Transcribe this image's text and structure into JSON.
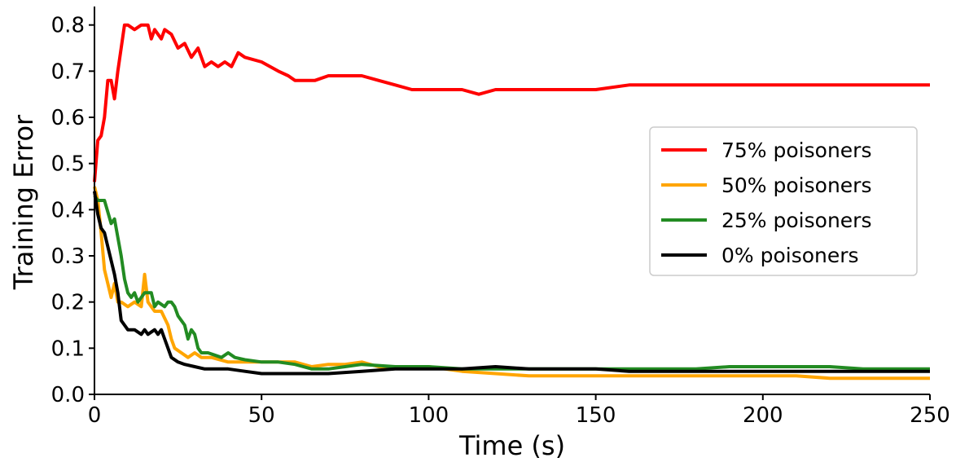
{
  "chart_data": {
    "type": "line",
    "title": "",
    "xlabel": "Time (s)",
    "ylabel": "Training Error",
    "xlim": [
      0,
      250
    ],
    "ylim": [
      0,
      0.84
    ],
    "xticks": [
      "0",
      "50",
      "100",
      "150",
      "200",
      "250"
    ],
    "yticks": [
      "0.0",
      "0.1",
      "0.2",
      "0.3",
      "0.4",
      "0.5",
      "0.6",
      "0.7",
      "0.8"
    ],
    "grid": false,
    "legend_position": "center-right",
    "series": [
      {
        "name": "75% poisoners",
        "color": "#ff0000",
        "points": [
          [
            0,
            0.46
          ],
          [
            1,
            0.55
          ],
          [
            2,
            0.56
          ],
          [
            3,
            0.6
          ],
          [
            4,
            0.68
          ],
          [
            5,
            0.68
          ],
          [
            6,
            0.64
          ],
          [
            7,
            0.7
          ],
          [
            8,
            0.75
          ],
          [
            9,
            0.8
          ],
          [
            10,
            0.8
          ],
          [
            12,
            0.79
          ],
          [
            14,
            0.8
          ],
          [
            16,
            0.8
          ],
          [
            17,
            0.77
          ],
          [
            18,
            0.79
          ],
          [
            20,
            0.77
          ],
          [
            21,
            0.79
          ],
          [
            23,
            0.78
          ],
          [
            25,
            0.75
          ],
          [
            27,
            0.76
          ],
          [
            29,
            0.73
          ],
          [
            31,
            0.75
          ],
          [
            33,
            0.71
          ],
          [
            35,
            0.72
          ],
          [
            37,
            0.71
          ],
          [
            39,
            0.72
          ],
          [
            41,
            0.71
          ],
          [
            43,
            0.74
          ],
          [
            45,
            0.73
          ],
          [
            50,
            0.72
          ],
          [
            55,
            0.7
          ],
          [
            58,
            0.69
          ],
          [
            60,
            0.68
          ],
          [
            63,
            0.68
          ],
          [
            66,
            0.68
          ],
          [
            70,
            0.69
          ],
          [
            75,
            0.69
          ],
          [
            80,
            0.69
          ],
          [
            85,
            0.68
          ],
          [
            90,
            0.67
          ],
          [
            95,
            0.66
          ],
          [
            100,
            0.66
          ],
          [
            105,
            0.66
          ],
          [
            110,
            0.66
          ],
          [
            115,
            0.65
          ],
          [
            120,
            0.66
          ],
          [
            130,
            0.66
          ],
          [
            140,
            0.66
          ],
          [
            150,
            0.66
          ],
          [
            160,
            0.67
          ],
          [
            170,
            0.67
          ],
          [
            180,
            0.67
          ],
          [
            190,
            0.67
          ],
          [
            200,
            0.67
          ],
          [
            210,
            0.67
          ],
          [
            220,
            0.67
          ],
          [
            230,
            0.67
          ],
          [
            240,
            0.67
          ],
          [
            250,
            0.67
          ]
        ]
      },
      {
        "name": "50% poisoners",
        "color": "#ffa500",
        "points": [
          [
            0,
            0.45
          ],
          [
            1,
            0.42
          ],
          [
            2,
            0.35
          ],
          [
            3,
            0.27
          ],
          [
            4,
            0.24
          ],
          [
            5,
            0.21
          ],
          [
            6,
            0.24
          ],
          [
            7,
            0.2
          ],
          [
            8,
            0.2
          ],
          [
            10,
            0.19
          ],
          [
            12,
            0.2
          ],
          [
            14,
            0.19
          ],
          [
            15,
            0.26
          ],
          [
            16,
            0.2
          ],
          [
            18,
            0.18
          ],
          [
            20,
            0.18
          ],
          [
            22,
            0.15
          ],
          [
            23,
            0.12
          ],
          [
            24,
            0.1
          ],
          [
            26,
            0.09
          ],
          [
            28,
            0.08
          ],
          [
            30,
            0.09
          ],
          [
            32,
            0.08
          ],
          [
            35,
            0.08
          ],
          [
            40,
            0.07
          ],
          [
            45,
            0.07
          ],
          [
            50,
            0.07
          ],
          [
            55,
            0.07
          ],
          [
            60,
            0.07
          ],
          [
            65,
            0.06
          ],
          [
            70,
            0.065
          ],
          [
            75,
            0.065
          ],
          [
            80,
            0.07
          ],
          [
            85,
            0.06
          ],
          [
            90,
            0.06
          ],
          [
            100,
            0.06
          ],
          [
            110,
            0.05
          ],
          [
            120,
            0.045
          ],
          [
            130,
            0.04
          ],
          [
            140,
            0.04
          ],
          [
            150,
            0.04
          ],
          [
            160,
            0.04
          ],
          [
            170,
            0.04
          ],
          [
            180,
            0.04
          ],
          [
            190,
            0.04
          ],
          [
            200,
            0.04
          ],
          [
            210,
            0.04
          ],
          [
            220,
            0.035
          ],
          [
            230,
            0.035
          ],
          [
            240,
            0.035
          ],
          [
            250,
            0.035
          ]
        ]
      },
      {
        "name": "25% poisoners",
        "color": "#228b22",
        "points": [
          [
            0,
            0.43
          ],
          [
            1,
            0.42
          ],
          [
            3,
            0.42
          ],
          [
            5,
            0.37
          ],
          [
            6,
            0.38
          ],
          [
            7,
            0.34
          ],
          [
            8,
            0.3
          ],
          [
            9,
            0.25
          ],
          [
            10,
            0.22
          ],
          [
            11,
            0.21
          ],
          [
            12,
            0.22
          ],
          [
            13,
            0.2
          ],
          [
            14,
            0.21
          ],
          [
            15,
            0.22
          ],
          [
            17,
            0.22
          ],
          [
            18,
            0.19
          ],
          [
            19,
            0.2
          ],
          [
            21,
            0.19
          ],
          [
            22,
            0.2
          ],
          [
            23,
            0.2
          ],
          [
            24,
            0.19
          ],
          [
            25,
            0.17
          ],
          [
            26,
            0.16
          ],
          [
            27,
            0.15
          ],
          [
            28,
            0.12
          ],
          [
            29,
            0.14
          ],
          [
            30,
            0.13
          ],
          [
            31,
            0.1
          ],
          [
            32,
            0.09
          ],
          [
            34,
            0.09
          ],
          [
            36,
            0.085
          ],
          [
            38,
            0.08
          ],
          [
            40,
            0.09
          ],
          [
            42,
            0.08
          ],
          [
            45,
            0.075
          ],
          [
            50,
            0.07
          ],
          [
            55,
            0.07
          ],
          [
            60,
            0.065
          ],
          [
            65,
            0.055
          ],
          [
            70,
            0.055
          ],
          [
            75,
            0.06
          ],
          [
            80,
            0.065
          ],
          [
            90,
            0.06
          ],
          [
            100,
            0.06
          ],
          [
            110,
            0.055
          ],
          [
            120,
            0.055
          ],
          [
            130,
            0.055
          ],
          [
            140,
            0.055
          ],
          [
            150,
            0.055
          ],
          [
            160,
            0.055
          ],
          [
            170,
            0.055
          ],
          [
            180,
            0.055
          ],
          [
            190,
            0.06
          ],
          [
            200,
            0.06
          ],
          [
            210,
            0.06
          ],
          [
            220,
            0.06
          ],
          [
            230,
            0.055
          ],
          [
            240,
            0.055
          ],
          [
            250,
            0.055
          ]
        ]
      },
      {
        "name": "0% poisoners",
        "color": "#000000",
        "points": [
          [
            0,
            0.44
          ],
          [
            1,
            0.39
          ],
          [
            2,
            0.36
          ],
          [
            3,
            0.35
          ],
          [
            4,
            0.32
          ],
          [
            5,
            0.29
          ],
          [
            6,
            0.26
          ],
          [
            7,
            0.22
          ],
          [
            8,
            0.16
          ],
          [
            9,
            0.15
          ],
          [
            10,
            0.14
          ],
          [
            12,
            0.14
          ],
          [
            14,
            0.13
          ],
          [
            15,
            0.14
          ],
          [
            16,
            0.13
          ],
          [
            18,
            0.14
          ],
          [
            19,
            0.13
          ],
          [
            20,
            0.14
          ],
          [
            21,
            0.12
          ],
          [
            22,
            0.1
          ],
          [
            23,
            0.08
          ],
          [
            25,
            0.07
          ],
          [
            27,
            0.065
          ],
          [
            30,
            0.06
          ],
          [
            33,
            0.055
          ],
          [
            35,
            0.055
          ],
          [
            40,
            0.055
          ],
          [
            45,
            0.05
          ],
          [
            50,
            0.045
          ],
          [
            60,
            0.045
          ],
          [
            70,
            0.045
          ],
          [
            80,
            0.05
          ],
          [
            90,
            0.055
          ],
          [
            100,
            0.055
          ],
          [
            110,
            0.055
          ],
          [
            120,
            0.06
          ],
          [
            130,
            0.055
          ],
          [
            140,
            0.055
          ],
          [
            150,
            0.055
          ],
          [
            160,
            0.05
          ],
          [
            170,
            0.05
          ],
          [
            180,
            0.05
          ],
          [
            190,
            0.05
          ],
          [
            200,
            0.05
          ],
          [
            210,
            0.05
          ],
          [
            220,
            0.05
          ],
          [
            230,
            0.05
          ],
          [
            240,
            0.05
          ],
          [
            250,
            0.05
          ]
        ]
      }
    ]
  }
}
